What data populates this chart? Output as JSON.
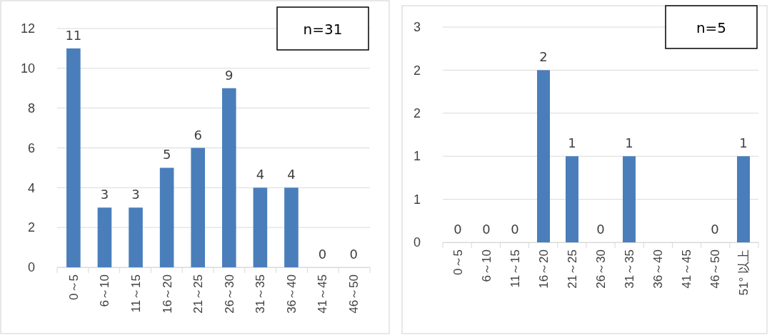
{
  "chart_data": [
    {
      "type": "bar",
      "categories": [
        "0～5",
        "6～10",
        "11～15",
        "16～20",
        "21～25",
        "26～30",
        "31～35",
        "36～40",
        "41～45",
        "46～50"
      ],
      "values": [
        11,
        3,
        3,
        5,
        6,
        9,
        4,
        4,
        0,
        0
      ],
      "color": "#4a7ebb",
      "ylim": [
        0,
        12
      ],
      "yticks": [
        0,
        2,
        4,
        6,
        8,
        10,
        12
      ],
      "grid": "y",
      "data_labels": true,
      "annotations": [
        "n=31"
      ]
    },
    {
      "type": "bar",
      "categories": [
        "0～5",
        "6～10",
        "11～15",
        "16～20",
        "21～25",
        "26～30",
        "31～35",
        "36～40",
        "41～45",
        "46～50",
        "51° 以上"
      ],
      "values": [
        0,
        0,
        0,
        2,
        1,
        0,
        1,
        null,
        null,
        0,
        1
      ],
      "value_labels": [
        "0",
        "0",
        "0",
        "2",
        "1",
        "0",
        "1",
        null,
        null,
        "0",
        "1"
      ],
      "color": "#4a7ebb",
      "ylim": [
        0,
        2.5
      ],
      "yticks": [
        0,
        {
          "value": 0.5,
          "label": "1"
        },
        1,
        {
          "value": 1.5,
          "label": "2"
        },
        2,
        {
          "value": 2.5,
          "label": "3"
        }
      ],
      "grid": "y",
      "annotations": [
        "n=5"
      ]
    }
  ]
}
